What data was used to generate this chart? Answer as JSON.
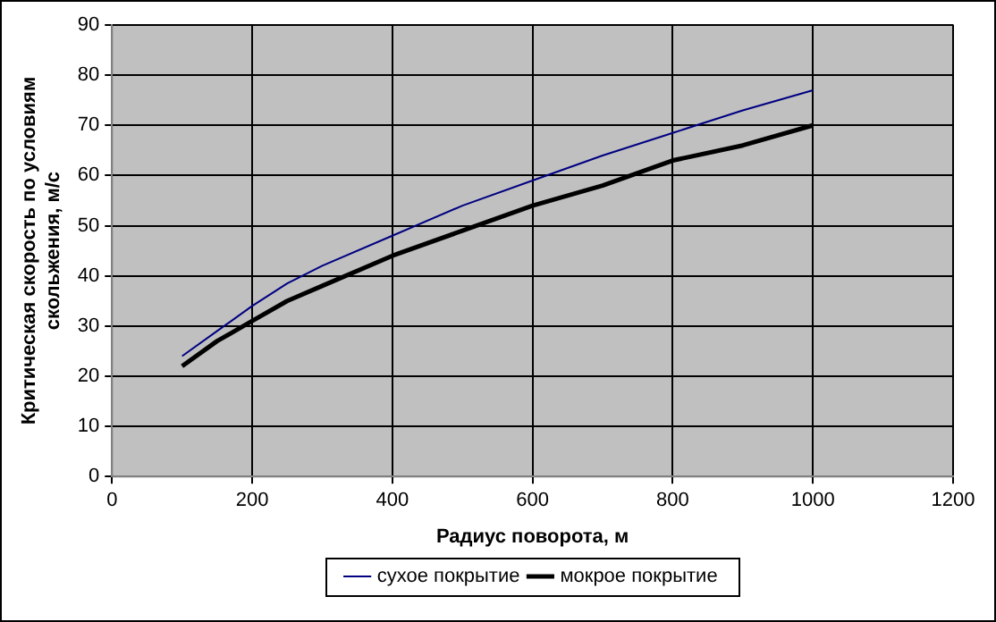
{
  "chart_data": {
    "type": "line",
    "xlabel": "Радиус поворота, м",
    "ylabel": "Критическая скорость по условиям скольжения, м/с",
    "x": [
      100,
      150,
      200,
      250,
      300,
      400,
      500,
      600,
      700,
      800,
      900,
      1000
    ],
    "series": [
      {
        "name": "сухое покрытие",
        "color": "#000080",
        "values": [
          24,
          29,
          34,
          38.5,
          42,
          48,
          54,
          59,
          64,
          68.5,
          73,
          77
        ]
      },
      {
        "name": "мокрое покрытие",
        "color": "#000000",
        "values": [
          22,
          27,
          31,
          35,
          38,
          44,
          49,
          54,
          58,
          63,
          66,
          70
        ]
      }
    ],
    "xlim": [
      0,
      1200
    ],
    "xticks": [
      0,
      200,
      400,
      600,
      800,
      1000,
      1200
    ],
    "ylim": [
      0,
      90
    ],
    "yticks": [
      0,
      10,
      20,
      30,
      40,
      50,
      60,
      70,
      80,
      90
    ],
    "grid": true,
    "legend": "bottom",
    "marker": "none",
    "line_style": "solid"
  }
}
